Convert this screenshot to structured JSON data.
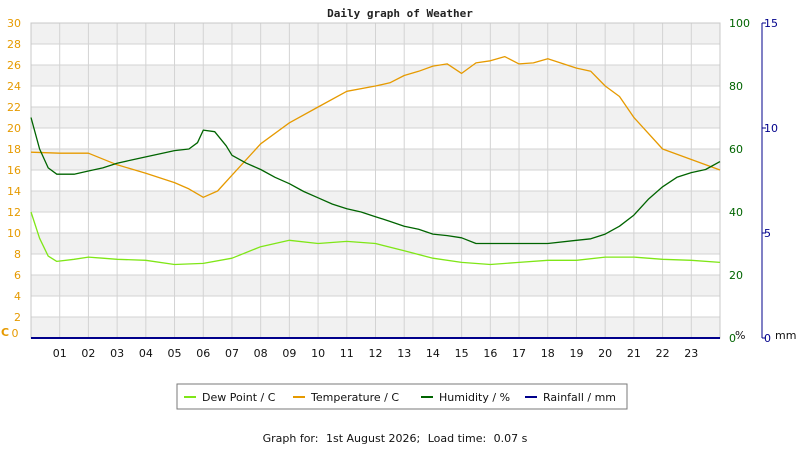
{
  "chart_data": {
    "type": "line",
    "title": "Daily graph of Weather",
    "x_ticks": [
      "01",
      "02",
      "03",
      "04",
      "05",
      "06",
      "07",
      "08",
      "09",
      "10",
      "11",
      "12",
      "13",
      "14",
      "15",
      "16",
      "17",
      "18",
      "19",
      "20",
      "21",
      "22",
      "23"
    ],
    "xlim": [
      0,
      24
    ],
    "grid": true,
    "legend_position": "bottom",
    "axes": {
      "left": {
        "unit": "C",
        "ylim": [
          0,
          30
        ],
        "ticks": [
          0,
          2,
          4,
          6,
          8,
          10,
          12,
          14,
          16,
          18,
          20,
          22,
          24,
          26,
          28,
          30
        ],
        "color": "#e69a00"
      },
      "right1": {
        "unit": "%",
        "ylim": [
          0,
          100
        ],
        "ticks": [
          0,
          20,
          40,
          60,
          80,
          100
        ],
        "color": "#006400"
      },
      "right2": {
        "unit": "mm",
        "ylim": [
          0,
          15
        ],
        "ticks": [
          0,
          5,
          10,
          15
        ],
        "color": "#00008b"
      }
    },
    "series": [
      {
        "name": "Dew Point / C",
        "axis": "left",
        "color": "#7fe617",
        "x": [
          0,
          0.3,
          0.6,
          0.9,
          1.5,
          2,
          2.5,
          3,
          4,
          5,
          6,
          7,
          8,
          9,
          10,
          11,
          12,
          13,
          14,
          15,
          16,
          17,
          18,
          19,
          20,
          21,
          22,
          23,
          24
        ],
        "y": [
          12,
          9.5,
          7.8,
          7.3,
          7.5,
          7.7,
          7.6,
          7.5,
          7.4,
          7.0,
          7.1,
          7.6,
          8.7,
          9.3,
          9.0,
          9.2,
          9.0,
          8.3,
          7.6,
          7.2,
          7.0,
          7.2,
          7.4,
          7.4,
          7.7,
          7.7,
          7.5,
          7.4,
          7.2
        ]
      },
      {
        "name": "Temperature / C",
        "axis": "left",
        "color": "#e69a00",
        "x": [
          0,
          1,
          2,
          3,
          4,
          5,
          5.5,
          6,
          6.5,
          7,
          8,
          9,
          10,
          11,
          12,
          12.5,
          13,
          13.5,
          14,
          14.5,
          15,
          15.5,
          16,
          16.5,
          17,
          17.5,
          18,
          19,
          19.5,
          20,
          20.5,
          21,
          22,
          23,
          24
        ],
        "y": [
          17.7,
          17.6,
          17.6,
          16.5,
          15.7,
          14.8,
          14.2,
          13.4,
          14.0,
          15.5,
          18.5,
          20.5,
          22,
          23.5,
          24,
          24.3,
          25,
          25.4,
          25.9,
          26.1,
          25.2,
          26.2,
          26.4,
          26.8,
          26.1,
          26.2,
          26.6,
          25.7,
          25.4,
          24.0,
          23.0,
          21.0,
          18.0,
          17.0,
          16.0
        ]
      },
      {
        "name": "Humidity / %",
        "axis": "right1",
        "color": "#006400",
        "x": [
          0,
          0.3,
          0.6,
          0.9,
          1.5,
          2,
          2.5,
          3,
          3.5,
          4,
          4.5,
          5,
          5.5,
          5.8,
          6,
          6.4,
          6.8,
          7,
          7.5,
          8,
          8.5,
          9,
          9.5,
          10,
          10.5,
          11,
          11.5,
          12,
          12.5,
          13,
          13.5,
          14,
          14.5,
          15,
          15.5,
          16,
          17,
          18,
          19,
          19.5,
          20,
          20.5,
          21,
          21.5,
          22,
          22.5,
          23,
          23.5,
          24
        ],
        "y": [
          70,
          60,
          54,
          52,
          52,
          53,
          54,
          55.5,
          56.5,
          57.5,
          58.5,
          59.5,
          60,
          62,
          66,
          65.5,
          61,
          58,
          55.5,
          53.5,
          51,
          49,
          46.5,
          44.5,
          42.5,
          41,
          40,
          38.5,
          37,
          35.5,
          34.5,
          33,
          32.5,
          31.8,
          30,
          30,
          30,
          30,
          31,
          31.5,
          33,
          35.5,
          39,
          44,
          48,
          51,
          52.5,
          53.5,
          56
        ]
      },
      {
        "name": "Rainfall / mm",
        "axis": "right2",
        "color": "#00008b",
        "x": [
          0,
          24
        ],
        "y": [
          0,
          0
        ]
      }
    ]
  },
  "footer": {
    "label": "Graph for:",
    "date": "1st August 2026;",
    "load_label": "Load time:",
    "load_value": "0.07 s"
  }
}
